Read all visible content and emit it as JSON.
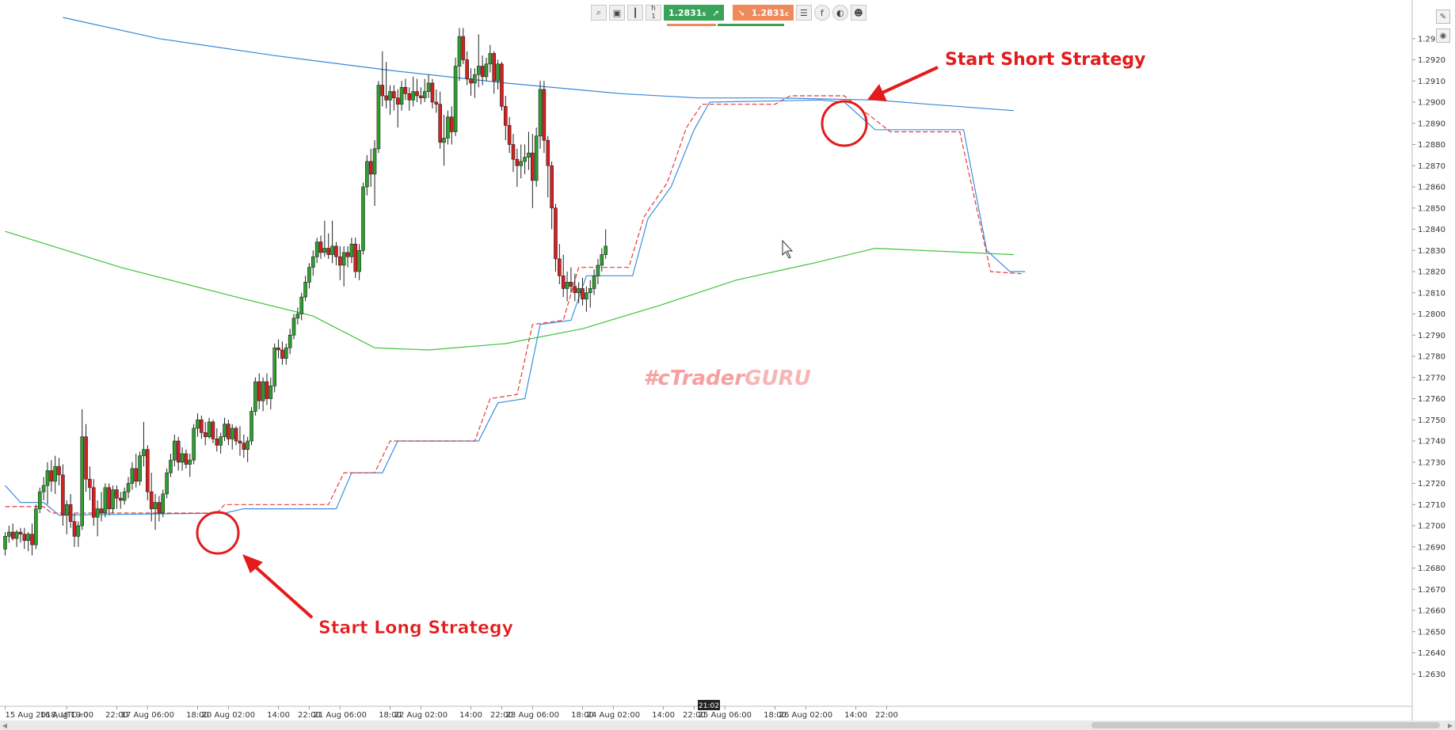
{
  "toolbar": {
    "icons": [
      "zoom-icon",
      "screenshot-icon",
      "chart-type-icon",
      "timeframe-icon"
    ],
    "timeframe_label": "h",
    "timeframe_value": "1",
    "buy_price": "1.2831",
    "buy_suffix": "s",
    "sell_price": "1.2831",
    "sell_suffix": "c",
    "right_icons": [
      "list-icon",
      "facebook-icon",
      "indicator-icon",
      "user-icon"
    ]
  },
  "watermark": {
    "part1": "#cTrader",
    "part2": "GURU"
  },
  "annotations": {
    "long": "Start Long Strategy",
    "short": "Start Short Strategy"
  },
  "crosshair_time": "21:02",
  "colors": {
    "bull": "#2ea02e",
    "bear": "#d42020",
    "sma_blue": "#3a86d8",
    "sma_green": "#3cc23c",
    "trail_red": "#e83a3a",
    "trail_blue": "#3b8fe0",
    "annotation": "#e31b1b"
  },
  "chart_data": {
    "type": "candlestick",
    "y_axis": {
      "min": 1.262,
      "max": 1.294,
      "ticks": [
        "1.2630",
        "1.2640",
        "1.2650",
        "1.2660",
        "1.2670",
        "1.2680",
        "1.2690",
        "1.2700",
        "1.2710",
        "1.2720",
        "1.2730",
        "1.2740",
        "1.2750",
        "1.2760",
        "1.2770",
        "1.2780",
        "1.2790",
        "1.2800",
        "1.2810",
        "1.2820",
        "1.2830",
        "1.2840",
        "1.2850",
        "1.2860",
        "1.2870",
        "1.2880",
        "1.2890",
        "1.2900",
        "1.2910",
        "1.2920",
        "1.2930"
      ],
      "partial_ticks": [
        "1.29",
        "1.29"
      ]
    },
    "x_axis": {
      "labels": [
        "15 Aug 2018, UTC+0",
        "16 Aug 10:00",
        "22:00",
        "17 Aug 06:00",
        "18:00",
        "20 Aug 02:00",
        "14:00",
        "22:00",
        "21 Aug 06:00",
        "18:00",
        "22 Aug 02:00",
        "14:00",
        "22:00",
        "23 Aug 06:00",
        "18:00",
        "24 Aug 02:00",
        "14:00",
        "22:00",
        "25 Aug 06:00",
        "18:00",
        "26 Aug 02:00",
        "14:00",
        "22:00"
      ],
      "label_bar_index": [
        0,
        16,
        29,
        37,
        50,
        58,
        71,
        79,
        87,
        100,
        108,
        121,
        129,
        137,
        150,
        158,
        171,
        179,
        187,
        200,
        208,
        221,
        229
      ]
    },
    "candles": [
      [
        1.2689,
        1.2697,
        1.2686,
        1.2695
      ],
      [
        1.2695,
        1.27,
        1.2692,
        1.2697
      ],
      [
        1.2697,
        1.2701,
        1.2693,
        1.2694
      ],
      [
        1.2694,
        1.2698,
        1.269,
        1.2697
      ],
      [
        1.2697,
        1.2699,
        1.2692,
        1.2696
      ],
      [
        1.2696,
        1.2699,
        1.2689,
        1.2693
      ],
      [
        1.2693,
        1.2697,
        1.2688,
        1.2696
      ],
      [
        1.2696,
        1.2701,
        1.2686,
        1.2691
      ],
      [
        1.2691,
        1.271,
        1.2689,
        1.2708
      ],
      [
        1.2708,
        1.2718,
        1.2706,
        1.2716
      ],
      [
        1.2716,
        1.2723,
        1.2712,
        1.2719
      ],
      [
        1.2719,
        1.273,
        1.271,
        1.2726
      ],
      [
        1.2726,
        1.2731,
        1.2716,
        1.2721
      ],
      [
        1.2721,
        1.2733,
        1.2715,
        1.2728
      ],
      [
        1.2728,
        1.2732,
        1.2719,
        1.2724
      ],
      [
        1.2724,
        1.2729,
        1.27,
        1.2705
      ],
      [
        1.2705,
        1.2712,
        1.2696,
        1.271
      ],
      [
        1.271,
        1.2715,
        1.2699,
        1.2702
      ],
      [
        1.2702,
        1.2706,
        1.269,
        1.2695
      ],
      [
        1.2695,
        1.2702,
        1.269,
        1.27
      ],
      [
        1.27,
        1.2755,
        1.2698,
        1.2742
      ],
      [
        1.2742,
        1.2748,
        1.2716,
        1.2722
      ],
      [
        1.2722,
        1.2728,
        1.2712,
        1.2718
      ],
      [
        1.2718,
        1.2722,
        1.27,
        1.2704
      ],
      [
        1.2704,
        1.2712,
        1.2695,
        1.2708
      ],
      [
        1.2708,
        1.2716,
        1.2702,
        1.2706
      ],
      [
        1.2706,
        1.272,
        1.2704,
        1.2718
      ],
      [
        1.2718,
        1.272,
        1.2705,
        1.2708
      ],
      [
        1.2708,
        1.2719,
        1.2706,
        1.2717
      ],
      [
        1.2717,
        1.2719,
        1.2708,
        1.2713
      ],
      [
        1.2713,
        1.2716,
        1.2708,
        1.2712
      ],
      [
        1.2712,
        1.2718,
        1.271,
        1.2716
      ],
      [
        1.2716,
        1.2723,
        1.2713,
        1.272
      ],
      [
        1.272,
        1.273,
        1.2717,
        1.2727
      ],
      [
        1.2727,
        1.2734,
        1.2718,
        1.2721
      ],
      [
        1.2721,
        1.2735,
        1.2719,
        1.2733
      ],
      [
        1.2733,
        1.2749,
        1.2728,
        1.2736
      ],
      [
        1.2736,
        1.2738,
        1.2712,
        1.2716
      ],
      [
        1.2716,
        1.2725,
        1.2702,
        1.2708
      ],
      [
        1.2708,
        1.2715,
        1.2698,
        1.2711
      ],
      [
        1.2711,
        1.2714,
        1.2702,
        1.2706
      ],
      [
        1.2706,
        1.2717,
        1.2704,
        1.2715
      ],
      [
        1.2715,
        1.2727,
        1.2713,
        1.2725
      ],
      [
        1.2725,
        1.2734,
        1.2723,
        1.2731
      ],
      [
        1.2731,
        1.2743,
        1.2728,
        1.274
      ],
      [
        1.274,
        1.2742,
        1.2726,
        1.273
      ],
      [
        1.273,
        1.2737,
        1.2726,
        1.2734
      ],
      [
        1.2734,
        1.2736,
        1.2727,
        1.2729
      ],
      [
        1.2729,
        1.2734,
        1.2723,
        1.2731
      ],
      [
        1.2731,
        1.2748,
        1.2729,
        1.2746
      ],
      [
        1.2746,
        1.2753,
        1.2742,
        1.275
      ],
      [
        1.275,
        1.2752,
        1.2741,
        1.2744
      ],
      [
        1.2744,
        1.2749,
        1.2738,
        1.2742
      ],
      [
        1.2742,
        1.2751,
        1.2741,
        1.2749
      ],
      [
        1.2749,
        1.275,
        1.2739,
        1.2741
      ],
      [
        1.2741,
        1.2746,
        1.2735,
        1.2738
      ],
      [
        1.2738,
        1.2744,
        1.2734,
        1.2742
      ],
      [
        1.2742,
        1.2751,
        1.274,
        1.2748
      ],
      [
        1.2748,
        1.275,
        1.2738,
        1.2741
      ],
      [
        1.2741,
        1.2748,
        1.2736,
        1.2746
      ],
      [
        1.2746,
        1.2747,
        1.2738,
        1.274
      ],
      [
        1.274,
        1.2747,
        1.2733,
        1.2739
      ],
      [
        1.2739,
        1.2743,
        1.2732,
        1.2736
      ],
      [
        1.2736,
        1.2742,
        1.273,
        1.274
      ],
      [
        1.274,
        1.2756,
        1.2738,
        1.2754
      ],
      [
        1.2754,
        1.277,
        1.2752,
        1.2768
      ],
      [
        1.2768,
        1.2772,
        1.2755,
        1.2759
      ],
      [
        1.2759,
        1.277,
        1.2754,
        1.2768
      ],
      [
        1.2768,
        1.2772,
        1.2757,
        1.276
      ],
      [
        1.276,
        1.277,
        1.2755,
        1.2766
      ],
      [
        1.2766,
        1.2786,
        1.2763,
        1.2784
      ],
      [
        1.2784,
        1.2788,
        1.2779,
        1.2783
      ],
      [
        1.2783,
        1.2787,
        1.2776,
        1.2779
      ],
      [
        1.2779,
        1.2786,
        1.2776,
        1.2784
      ],
      [
        1.2784,
        1.2793,
        1.2781,
        1.279
      ],
      [
        1.279,
        1.28,
        1.2788,
        1.2798
      ],
      [
        1.2798,
        1.2803,
        1.2795,
        1.28
      ],
      [
        1.28,
        1.281,
        1.2797,
        1.2808
      ],
      [
        1.2808,
        1.2818,
        1.2806,
        1.2815
      ],
      [
        1.2815,
        1.2824,
        1.2812,
        1.2822
      ],
      [
        1.2822,
        1.283,
        1.2818,
        1.2827
      ],
      [
        1.2827,
        1.2836,
        1.2824,
        1.2834
      ],
      [
        1.2834,
        1.2837,
        1.2826,
        1.2829
      ],
      [
        1.2829,
        1.2844,
        1.2827,
        1.2831
      ],
      [
        1.2831,
        1.2838,
        1.2826,
        1.2828
      ],
      [
        1.2828,
        1.2844,
        1.2824,
        1.2832
      ],
      [
        1.2832,
        1.2834,
        1.2823,
        1.2827
      ],
      [
        1.2827,
        1.2832,
        1.2816,
        1.2823
      ],
      [
        1.2823,
        1.2832,
        1.2813,
        1.2829
      ],
      [
        1.2829,
        1.2832,
        1.2822,
        1.2827
      ],
      [
        1.2827,
        1.2836,
        1.2824,
        1.2833
      ],
      [
        1.2833,
        1.2836,
        1.2817,
        1.282
      ],
      [
        1.282,
        1.2833,
        1.2816,
        1.283
      ],
      [
        1.283,
        1.2862,
        1.2828,
        1.286
      ],
      [
        1.286,
        1.2875,
        1.2856,
        1.2872
      ],
      [
        1.2872,
        1.2878,
        1.286,
        1.2866
      ],
      [
        1.2866,
        1.2882,
        1.2851,
        1.2878
      ],
      [
        1.2878,
        1.291,
        1.2876,
        1.2908
      ],
      [
        1.2908,
        1.2924,
        1.2898,
        1.2903
      ],
      [
        1.2903,
        1.2919,
        1.2897,
        1.2901
      ],
      [
        1.2901,
        1.2908,
        1.2894,
        1.2905
      ],
      [
        1.2905,
        1.2908,
        1.2896,
        1.2902
      ],
      [
        1.2902,
        1.2906,
        1.2888,
        1.2899
      ],
      [
        1.2899,
        1.291,
        1.2896,
        1.2907
      ],
      [
        1.2907,
        1.2911,
        1.2901,
        1.2904
      ],
      [
        1.2904,
        1.2907,
        1.2896,
        1.2901
      ],
      [
        1.2901,
        1.2912,
        1.2898,
        1.2905
      ],
      [
        1.2905,
        1.2911,
        1.29,
        1.2903
      ],
      [
        1.2903,
        1.2907,
        1.2899,
        1.2902
      ],
      [
        1.2902,
        1.2911,
        1.29,
        1.2905
      ],
      [
        1.2905,
        1.2913,
        1.2902,
        1.2909
      ],
      [
        1.2909,
        1.2911,
        1.2897,
        1.29
      ],
      [
        1.29,
        1.2906,
        1.2895,
        1.2899
      ],
      [
        1.2899,
        1.2905,
        1.2878,
        1.2881
      ],
      [
        1.2881,
        1.2894,
        1.287,
        1.2883
      ],
      [
        1.2883,
        1.2896,
        1.288,
        1.2893
      ],
      [
        1.2893,
        1.2898,
        1.288,
        1.2886
      ],
      [
        1.2886,
        1.2921,
        1.2884,
        1.2917
      ],
      [
        1.2917,
        1.2935,
        1.291,
        1.2931
      ],
      [
        1.2931,
        1.2935,
        1.2918,
        1.292
      ],
      [
        1.292,
        1.2924,
        1.2908,
        1.2911
      ],
      [
        1.2911,
        1.2916,
        1.2903,
        1.2909
      ],
      [
        1.2909,
        1.2916,
        1.2902,
        1.2913
      ],
      [
        1.2913,
        1.2932,
        1.2907,
        1.2917
      ],
      [
        1.2917,
        1.2922,
        1.2908,
        1.2912
      ],
      [
        1.2912,
        1.2921,
        1.291,
        1.2918
      ],
      [
        1.2918,
        1.2927,
        1.2914,
        1.2923
      ],
      [
        1.2923,
        1.2924,
        1.2904,
        1.291
      ],
      [
        1.291,
        1.292,
        1.2906,
        1.2918
      ],
      [
        1.2918,
        1.2919,
        1.2896,
        1.2898
      ],
      [
        1.2898,
        1.2903,
        1.2882,
        1.2889
      ],
      [
        1.2889,
        1.2893,
        1.2876,
        1.288
      ],
      [
        1.288,
        1.2885,
        1.2867,
        1.2873
      ],
      [
        1.2873,
        1.2878,
        1.286,
        1.287
      ],
      [
        1.287,
        1.288,
        1.2864,
        1.2872
      ],
      [
        1.2872,
        1.288,
        1.2866,
        1.2874
      ],
      [
        1.2874,
        1.2886,
        1.2868,
        1.2876
      ],
      [
        1.2876,
        1.2885,
        1.285,
        1.2863
      ],
      [
        1.2863,
        1.2888,
        1.286,
        1.2884
      ],
      [
        1.2884,
        1.291,
        1.2878,
        1.2906
      ],
      [
        1.2906,
        1.291,
        1.2876,
        1.2882
      ],
      [
        1.2882,
        1.2884,
        1.2855,
        1.287
      ],
      [
        1.287,
        1.2872,
        1.284,
        1.285
      ],
      [
        1.285,
        1.2852,
        1.282,
        1.2826
      ],
      [
        1.2826,
        1.2833,
        1.2814,
        1.2818
      ],
      [
        1.2818,
        1.2828,
        1.2808,
        1.2812
      ],
      [
        1.2812,
        1.282,
        1.2806,
        1.2815
      ],
      [
        1.2815,
        1.2822,
        1.281,
        1.2813
      ],
      [
        1.2813,
        1.2819,
        1.2806,
        1.281
      ],
      [
        1.281,
        1.2815,
        1.2805,
        1.2812
      ],
      [
        1.2812,
        1.2817,
        1.2804,
        1.2807
      ],
      [
        1.2807,
        1.2813,
        1.2801,
        1.281
      ],
      [
        1.281,
        1.2816,
        1.2803,
        1.2812
      ],
      [
        1.2812,
        1.2821,
        1.2809,
        1.2818
      ],
      [
        1.2818,
        1.2826,
        1.2814,
        1.2823
      ],
      [
        1.2823,
        1.2831,
        1.282,
        1.2828
      ],
      [
        1.2828,
        1.284,
        1.2826,
        1.2832
      ]
    ],
    "sma_long": {
      "name": "",
      "points": [
        [
          0,
          1.2839
        ],
        [
          30,
          1.2822
        ],
        [
          60,
          1.2808
        ],
        [
          80,
          1.2799
        ],
        [
          96,
          1.2784
        ],
        [
          110,
          1.2783
        ],
        [
          130,
          1.2786
        ],
        [
          150,
          1.2793
        ],
        [
          170,
          1.2804
        ],
        [
          190,
          1.2816
        ],
        [
          210,
          1.2824
        ],
        [
          226,
          1.2831
        ],
        [
          250,
          1.2829
        ],
        [
          262,
          1.2828
        ]
      ]
    },
    "sma_mid": {
      "name": "",
      "points": [
        [
          15,
          1.294
        ],
        [
          40,
          1.293
        ],
        [
          70,
          1.2922
        ],
        [
          100,
          1.2915
        ],
        [
          130,
          1.2909
        ],
        [
          160,
          1.2904
        ],
        [
          180,
          1.2902
        ],
        [
          200,
          1.2902
        ],
        [
          226,
          1.2901
        ],
        [
          240,
          1.2899
        ],
        [
          262,
          1.2896
        ]
      ]
    },
    "trail_red": {
      "name": "",
      "points": [
        [
          0,
          1.2709
        ],
        [
          10,
          1.2709
        ],
        [
          12,
          1.2706
        ],
        [
          55,
          1.2706
        ],
        [
          57,
          1.271
        ],
        [
          84,
          1.271
        ],
        [
          88,
          1.2725
        ],
        [
          96,
          1.2725
        ],
        [
          100,
          1.274
        ],
        [
          122,
          1.274
        ],
        [
          126,
          1.276
        ],
        [
          133,
          1.2762
        ],
        [
          137,
          1.2795
        ],
        [
          145,
          1.2797
        ],
        [
          149,
          1.2822
        ],
        [
          162,
          1.2822
        ],
        [
          166,
          1.2846
        ],
        [
          172,
          1.2862
        ],
        [
          177,
          1.2888
        ],
        [
          181,
          1.2899
        ],
        [
          200,
          1.2899
        ],
        [
          204,
          1.2903
        ],
        [
          218,
          1.2903
        ],
        [
          230,
          1.2886
        ],
        [
          248,
          1.2886
        ],
        [
          256,
          1.282
        ],
        [
          264,
          1.2819
        ]
      ]
    },
    "trail_blue": {
      "name": "",
      "points": [
        [
          0,
          1.2719
        ],
        [
          4,
          1.2711
        ],
        [
          10,
          1.2711
        ],
        [
          14,
          1.2705
        ],
        [
          57,
          1.2706
        ],
        [
          62,
          1.2708
        ],
        [
          86,
          1.2708
        ],
        [
          90,
          1.2725
        ],
        [
          98,
          1.2725
        ],
        [
          102,
          1.274
        ],
        [
          123,
          1.274
        ],
        [
          128,
          1.2758
        ],
        [
          135,
          1.276
        ],
        [
          139,
          1.2795
        ],
        [
          147,
          1.2797
        ],
        [
          151,
          1.2818
        ],
        [
          163,
          1.2818
        ],
        [
          167,
          1.2845
        ],
        [
          173,
          1.286
        ],
        [
          179,
          1.2887
        ],
        [
          183,
          1.29
        ],
        [
          212,
          1.2901
        ],
        [
          218,
          1.29
        ],
        [
          226,
          1.2887
        ],
        [
          249,
          1.2887
        ],
        [
          255,
          1.283
        ],
        [
          261,
          1.282
        ],
        [
          265,
          1.282
        ]
      ]
    }
  }
}
